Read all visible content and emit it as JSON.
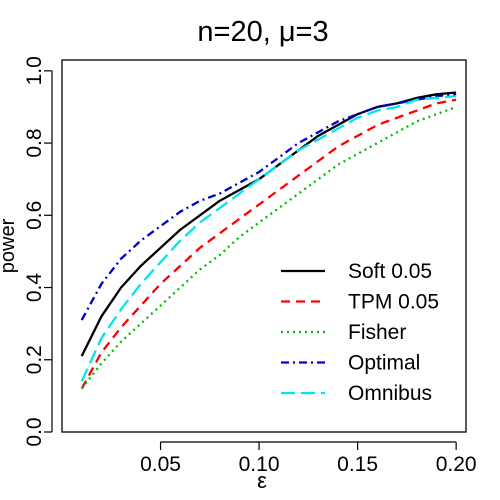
{
  "chart_data": {
    "type": "line",
    "title": "n=20, μ=3",
    "xlabel": "ε",
    "ylabel": "power",
    "xlim": [
      0.0,
      0.205
    ],
    "ylim": [
      0.0,
      1.03
    ],
    "xticks": [
      {
        "value": 0.05,
        "label": "0.05"
      },
      {
        "value": 0.1,
        "label": "0.10"
      },
      {
        "value": 0.15,
        "label": "0.15"
      },
      {
        "value": 0.2,
        "label": "0.20"
      }
    ],
    "yticks": [
      {
        "value": 0.0,
        "label": "0.0"
      },
      {
        "value": 0.2,
        "label": "0.2"
      },
      {
        "value": 0.4,
        "label": "0.4"
      },
      {
        "value": 0.6,
        "label": "0.6"
      },
      {
        "value": 0.8,
        "label": "0.8"
      },
      {
        "value": 1.0,
        "label": "1.0"
      }
    ],
    "grid": false,
    "legend_position": "bottom-right",
    "x": [
      0.01,
      0.02,
      0.03,
      0.04,
      0.05,
      0.06,
      0.07,
      0.08,
      0.09,
      0.1,
      0.11,
      0.12,
      0.13,
      0.14,
      0.15,
      0.16,
      0.17,
      0.18,
      0.19,
      0.2
    ],
    "series": [
      {
        "name": "Soft 0.05",
        "color": "#000000",
        "dash": "",
        "values": [
          0.21,
          0.32,
          0.4,
          0.46,
          0.51,
          0.56,
          0.6,
          0.64,
          0.67,
          0.7,
          0.74,
          0.78,
          0.82,
          0.85,
          0.88,
          0.9,
          0.91,
          0.925,
          0.935,
          0.94
        ]
      },
      {
        "name": "TPM 0.05",
        "color": "#ff0000",
        "dash": "9,6",
        "values": [
          0.12,
          0.22,
          0.29,
          0.35,
          0.41,
          0.46,
          0.51,
          0.55,
          0.59,
          0.63,
          0.67,
          0.71,
          0.75,
          0.79,
          0.82,
          0.85,
          0.87,
          0.89,
          0.91,
          0.92
        ]
      },
      {
        "name": "Fisher",
        "color": "#00bb00",
        "dash": "2,4",
        "values": [
          0.12,
          0.19,
          0.25,
          0.3,
          0.35,
          0.4,
          0.45,
          0.49,
          0.54,
          0.58,
          0.62,
          0.66,
          0.7,
          0.74,
          0.77,
          0.8,
          0.83,
          0.86,
          0.88,
          0.9
        ]
      },
      {
        "name": "Optimal",
        "color": "#0000cc",
        "dash": "8,4,2,4",
        "values": [
          0.31,
          0.41,
          0.48,
          0.53,
          0.57,
          0.61,
          0.64,
          0.66,
          0.69,
          0.72,
          0.76,
          0.8,
          0.83,
          0.86,
          0.88,
          0.9,
          0.91,
          0.92,
          0.93,
          0.935
        ]
      },
      {
        "name": "Omnibus",
        "color": "#00e5ee",
        "dash": "14,6",
        "values": [
          0.14,
          0.26,
          0.34,
          0.41,
          0.47,
          0.53,
          0.58,
          0.62,
          0.66,
          0.7,
          0.74,
          0.78,
          0.81,
          0.84,
          0.87,
          0.89,
          0.9,
          0.92,
          0.925,
          0.93
        ]
      }
    ]
  }
}
